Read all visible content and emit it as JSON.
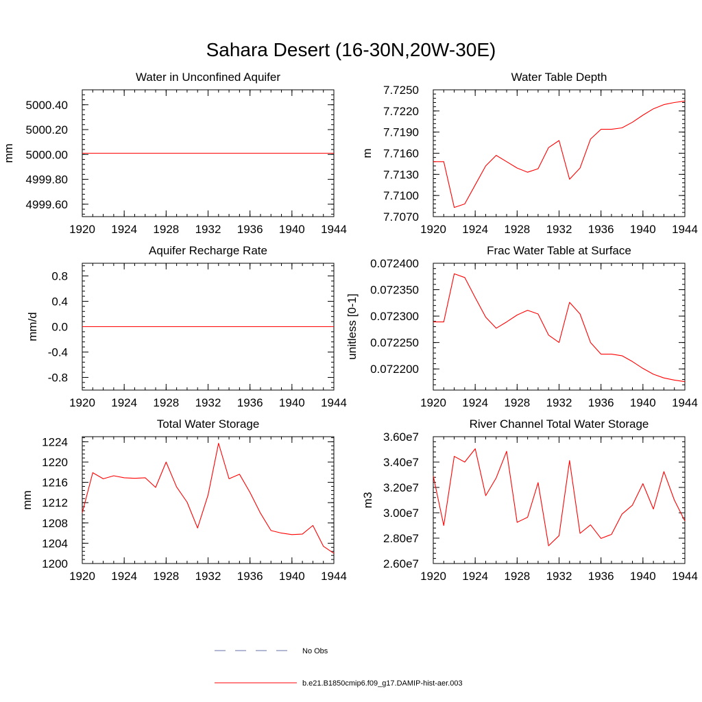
{
  "figure": {
    "title": "Sahara Desert (16-30N,20W-30E)"
  },
  "legend": {
    "items": [
      {
        "label": "No Obs",
        "style": "dashed",
        "color": "#6670a8"
      },
      {
        "label": "b.e21.B1850cmip6.f09_g17.DAMIP-hist-aer.003",
        "style": "solid",
        "color": "#ff0000"
      }
    ]
  },
  "chart_data": [
    {
      "type": "line",
      "title": "Water in Unconfined Aquifer",
      "xlabel": "",
      "ylabel": "mm",
      "xlim": [
        1920,
        1944
      ],
      "ylim": [
        4999.5,
        5000.52
      ],
      "xticks": [
        "1920",
        "1924",
        "1928",
        "1932",
        "1936",
        "1940",
        "1944"
      ],
      "yticks": [
        "4999.60",
        "4999.80",
        "5000.00",
        "5000.20",
        "5000.40"
      ],
      "ytick_values": [
        4999.6,
        4999.8,
        5000.0,
        5000.2,
        5000.4
      ],
      "series": [
        {
          "color": "#ff0000",
          "x": [
            1920,
            1944
          ],
          "y": [
            5000.01,
            5000.01
          ]
        }
      ]
    },
    {
      "type": "line",
      "title": "Water Table Depth",
      "xlabel": "",
      "ylabel": "m",
      "xlim": [
        1920,
        1944
      ],
      "ylim": [
        7.707,
        7.725
      ],
      "xticks": [
        "1920",
        "1924",
        "1928",
        "1932",
        "1936",
        "1940",
        "1944"
      ],
      "yticks": [
        "7.7070",
        "7.7100",
        "7.7130",
        "7.7160",
        "7.7190",
        "7.7220",
        "7.7250"
      ],
      "ytick_values": [
        7.707,
        7.71,
        7.713,
        7.716,
        7.719,
        7.722,
        7.725
      ],
      "series": [
        {
          "color": "#ff0000",
          "x": [
            1920,
            1921,
            1922,
            1923,
            1924,
            1925,
            1926,
            1927,
            1928,
            1929,
            1930,
            1931,
            1932,
            1933,
            1934,
            1935,
            1936,
            1937,
            1938,
            1939,
            1940,
            1941,
            1942,
            1943,
            1944
          ],
          "y": [
            7.7148,
            7.7148,
            7.7083,
            7.7088,
            7.7115,
            7.7142,
            7.7157,
            7.7148,
            7.7139,
            7.7133,
            7.7138,
            7.7168,
            7.7178,
            7.7123,
            7.7139,
            7.718,
            7.7194,
            7.7194,
            7.7196,
            7.7204,
            7.7214,
            7.7223,
            7.7229,
            7.7232,
            7.7234
          ]
        }
      ]
    },
    {
      "type": "line",
      "title": "Aquifer Recharge Rate",
      "xlabel": "",
      "ylabel": "mm/d",
      "xlim": [
        1920,
        1944
      ],
      "ylim": [
        -1.0,
        1.0
      ],
      "xticks": [
        "1920",
        "1924",
        "1928",
        "1932",
        "1936",
        "1940",
        "1944"
      ],
      "yticks": [
        "-0.8",
        "-0.4",
        "0.0",
        "0.4",
        "0.8"
      ],
      "ytick_values": [
        -0.8,
        -0.4,
        0.0,
        0.4,
        0.8
      ],
      "series": [
        {
          "color": "#ff0000",
          "x": [
            1920,
            1944
          ],
          "y": [
            0.0,
            0.0
          ]
        }
      ]
    },
    {
      "type": "line",
      "title": "Frac Water Table at Surface",
      "xlabel": "",
      "ylabel": "unitless [0-1]",
      "xlim": [
        1920,
        1944
      ],
      "ylim": [
        0.07216,
        0.0724
      ],
      "xticks": [
        "1920",
        "1924",
        "1928",
        "1932",
        "1936",
        "1940",
        "1944"
      ],
      "yticks": [
        "0.072200",
        "0.072250",
        "0.072300",
        "0.072350",
        "0.072400"
      ],
      "ytick_values": [
        0.0722,
        0.07225,
        0.0723,
        0.07235,
        0.0724
      ],
      "series": [
        {
          "color": "#ff0000",
          "x": [
            1920,
            1921,
            1922,
            1923,
            1924,
            1925,
            1926,
            1927,
            1928,
            1929,
            1930,
            1931,
            1932,
            1933,
            1934,
            1935,
            1936,
            1937,
            1938,
            1939,
            1940,
            1941,
            1942,
            1943,
            1944
          ],
          "y": [
            0.072289,
            0.072289,
            0.07238,
            0.072373,
            0.072335,
            0.072298,
            0.072277,
            0.072289,
            0.072302,
            0.072311,
            0.072304,
            0.072264,
            0.07225,
            0.072326,
            0.072304,
            0.07225,
            0.072228,
            0.072228,
            0.072225,
            0.072214,
            0.072201,
            0.07219,
            0.072183,
            0.072179,
            0.072176
          ]
        }
      ]
    },
    {
      "type": "line",
      "title": "Total Water Storage",
      "xlabel": "",
      "ylabel": "mm",
      "xlim": [
        1920,
        1944
      ],
      "ylim": [
        1200,
        1225
      ],
      "xticks": [
        "1920",
        "1924",
        "1928",
        "1932",
        "1936",
        "1940",
        "1944"
      ],
      "yticks": [
        "1200",
        "1204",
        "1208",
        "1212",
        "1216",
        "1220",
        "1224"
      ],
      "ytick_values": [
        1200,
        1204,
        1208,
        1212,
        1216,
        1220,
        1224
      ],
      "series": [
        {
          "color": "#ff0000",
          "x": [
            1920,
            1921,
            1922,
            1923,
            1924,
            1925,
            1926,
            1927,
            1928,
            1929,
            1930,
            1931,
            1932,
            1933,
            1934,
            1935,
            1936,
            1937,
            1938,
            1939,
            1940,
            1941,
            1942,
            1943,
            1944
          ],
          "y": [
            1210.0,
            1217.9,
            1216.7,
            1217.3,
            1216.9,
            1216.8,
            1216.9,
            1215.0,
            1220.0,
            1215.1,
            1212.1,
            1207.0,
            1213.5,
            1223.7,
            1216.7,
            1217.6,
            1214.0,
            1209.9,
            1206.5,
            1206.0,
            1205.7,
            1205.8,
            1207.5,
            1203.4,
            1202.0
          ]
        }
      ]
    },
    {
      "type": "line",
      "title": "River Channel Total Water Storage",
      "xlabel": "",
      "ylabel": "m3",
      "xlim": [
        1920,
        1944
      ],
      "ylim": [
        26000000,
        36000000
      ],
      "xticks": [
        "1920",
        "1924",
        "1928",
        "1932",
        "1936",
        "1940",
        "1944"
      ],
      "yticks": [
        "2.60e7",
        "2.80e7",
        "3.00e7",
        "3.20e7",
        "3.40e7",
        "3.60e7"
      ],
      "ytick_values": [
        26000000,
        28000000,
        30000000,
        32000000,
        34000000,
        36000000
      ],
      "series": [
        {
          "color": "#ff0000",
          "x": [
            1920,
            1921,
            1922,
            1923,
            1924,
            1925,
            1926,
            1927,
            1928,
            1929,
            1930,
            1931,
            1932,
            1933,
            1934,
            1935,
            1936,
            1937,
            1938,
            1939,
            1940,
            1941,
            1942,
            1943,
            1944
          ],
          "y": [
            32900000,
            29000000,
            34450000,
            34000000,
            35050000,
            31350000,
            32750000,
            34850000,
            29250000,
            29650000,
            32380000,
            27400000,
            28200000,
            34120000,
            28380000,
            29050000,
            27980000,
            28300000,
            29900000,
            30600000,
            32300000,
            30300000,
            33250000,
            31000000,
            29350000
          ]
        }
      ]
    }
  ]
}
